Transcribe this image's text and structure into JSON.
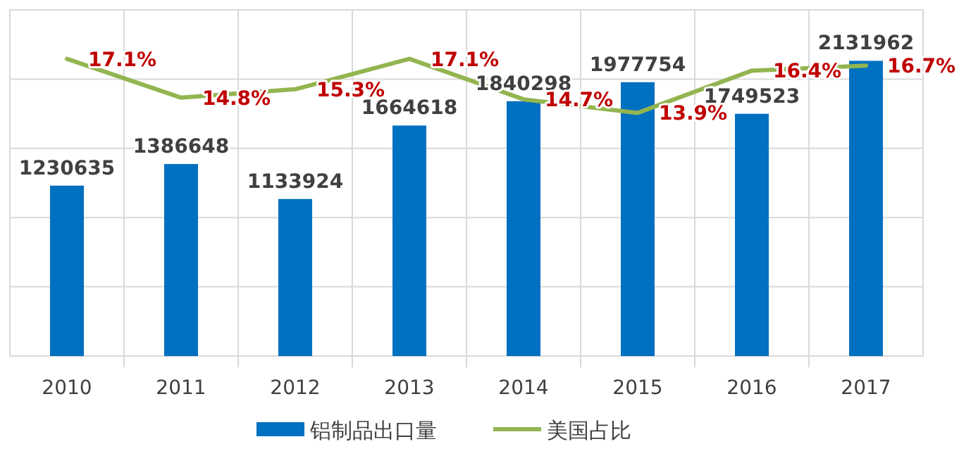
{
  "chart_data": {
    "type": "bar",
    "categories": [
      "2010",
      "2011",
      "2012",
      "2013",
      "2014",
      "2015",
      "2016",
      "2017"
    ],
    "series": [
      {
        "name": "铝制品出口量",
        "color": "#0070c0",
        "values": [
          1230635,
          1386648,
          1133924,
          1664618,
          1840298,
          1977754,
          1749523,
          2131962
        ],
        "value_labels": [
          "1230635",
          "1386648",
          "1133924",
          "1664618",
          "1840298",
          "1977754",
          "1749523",
          "2131962"
        ]
      },
      {
        "name": "美国占比",
        "type": "line",
        "axis": "y2",
        "color": "#92b550",
        "values": [
          17.1,
          14.8,
          15.3,
          17.1,
          14.7,
          13.9,
          16.4,
          16.7
        ],
        "value_labels": [
          "17.1%",
          "14.8%",
          "15.3%",
          "17.1%",
          "14.7%",
          "13.9%",
          "16.4%",
          "16.7%"
        ]
      }
    ],
    "ylim": [
      0,
      2500000
    ],
    "yticks": [
      {
        "value": 0,
        "label": null
      },
      {
        "value": 500000,
        "label": null
      },
      {
        "value": 1000000,
        "label": null
      },
      {
        "value": 1500000,
        "label": null
      },
      {
        "value": 2000000,
        "label": null
      },
      {
        "value": 2500000,
        "label": null
      }
    ],
    "y2lim": [
      -0.5,
      20
    ],
    "tick_labels": "x",
    "grid": true,
    "legend": "bottom"
  }
}
